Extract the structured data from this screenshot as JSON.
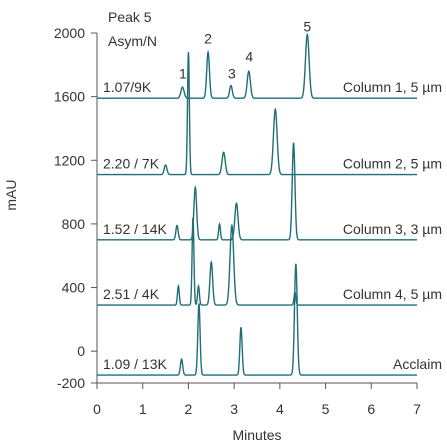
{
  "chart_data": {
    "type": "line",
    "xlabel": "Minutes",
    "ylabel": "mAU",
    "xlim": [
      0,
      7
    ],
    "ylim": [
      -200,
      2000
    ],
    "x_ticks": [
      0,
      1,
      2,
      3,
      4,
      5,
      6,
      7
    ],
    "y_ticks": [
      2000,
      1600,
      1200,
      800,
      400,
      0,
      -200
    ],
    "header": [
      "Peak 5",
      "Asym/N"
    ],
    "line_color": "#1f6e78",
    "peak_labels": [
      {
        "label": "1",
        "x": 1.88,
        "y": 1715
      },
      {
        "label": "2",
        "x": 2.43,
        "y": 1935
      },
      {
        "label": "3",
        "x": 2.95,
        "y": 1715
      },
      {
        "label": "4",
        "x": 3.33,
        "y": 1820
      },
      {
        "label": "5",
        "x": 4.6,
        "y": 2010
      }
    ],
    "series": [
      {
        "name": "Column 1, 5 µm",
        "asym_n": "1.07/9K",
        "baseline": 1590,
        "peaks": [
          {
            "t": 1.87,
            "h": 70,
            "w": 0.035
          },
          {
            "t": 2.43,
            "h": 290,
            "w": 0.03
          },
          {
            "t": 2.93,
            "h": 80,
            "w": 0.03
          },
          {
            "t": 3.32,
            "h": 170,
            "w": 0.035
          },
          {
            "t": 4.6,
            "h": 400,
            "w": 0.04
          }
        ]
      },
      {
        "name": "Column 2, 5 µm",
        "asym_n": "2.20 / 7K",
        "baseline": 1110,
        "peaks": [
          {
            "t": 1.5,
            "h": 60,
            "w": 0.03
          },
          {
            "t": 2.0,
            "h": 770,
            "w": 0.02
          },
          {
            "t": 2.77,
            "h": 140,
            "w": 0.035
          },
          {
            "t": 3.9,
            "h": 410,
            "w": 0.04
          }
        ]
      },
      {
        "name": "Column 3, 3 µm",
        "asym_n": "1.52 / 14K",
        "baseline": 700,
        "peaks": [
          {
            "t": 1.75,
            "h": 90,
            "w": 0.025
          },
          {
            "t": 2.15,
            "h": 330,
            "w": 0.03
          },
          {
            "t": 2.68,
            "h": 100,
            "w": 0.02
          },
          {
            "t": 3.05,
            "h": 230,
            "w": 0.035
          },
          {
            "t": 4.3,
            "h": 610,
            "w": 0.03
          }
        ]
      },
      {
        "name": "Column 4, 5 µm",
        "asym_n": "2.51 / 4K",
        "baseline": 290,
        "peaks": [
          {
            "t": 1.78,
            "h": 120,
            "w": 0.02
          },
          {
            "t": 2.1,
            "h": 550,
            "w": 0.02
          },
          {
            "t": 2.22,
            "h": 120,
            "w": 0.02
          },
          {
            "t": 2.5,
            "h": 270,
            "w": 0.03
          },
          {
            "t": 2.95,
            "h": 500,
            "w": 0.04
          },
          {
            "t": 4.33,
            "h": 80,
            "w": 0.02
          }
        ]
      },
      {
        "name": "Acclaim",
        "asym_n": "1.09 / 13K",
        "baseline": -150,
        "peaks": [
          {
            "t": 1.85,
            "h": 100,
            "w": 0.025
          },
          {
            "t": 2.23,
            "h": 450,
            "w": 0.025
          },
          {
            "t": 3.15,
            "h": 300,
            "w": 0.025
          },
          {
            "t": 4.35,
            "h": 700,
            "w": 0.03
          }
        ]
      }
    ]
  }
}
